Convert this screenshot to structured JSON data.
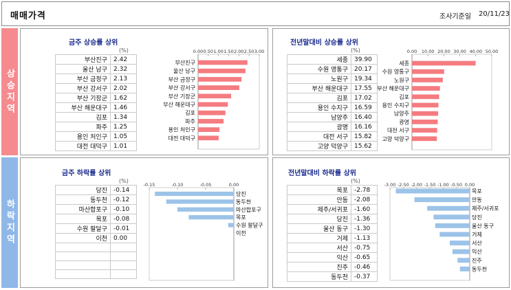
{
  "header": {
    "title": "매매가격",
    "date_label": "조사기준일",
    "date_value": "20/11/23"
  },
  "row_labels": {
    "rise": "상승지역",
    "fall": "하락지역"
  },
  "unit": "(%)",
  "chart_data": [
    {
      "type": "bar",
      "title": "금주 상승률 상위",
      "categories": [
        "부산진구",
        "울산 남구",
        "부산 금정구",
        "부산 강서구",
        "부산 기장군",
        "부산 해운대구",
        "김포",
        "파주",
        "용인 처인구",
        "대전 대덕구"
      ],
      "values": [
        2.42,
        2.32,
        2.13,
        2.02,
        1.62,
        1.46,
        1.34,
        1.25,
        1.05,
        1.01
      ],
      "value_labels": [
        "2.42",
        "2.32",
        "2.13",
        "2.02",
        "1.62",
        "1.46",
        "1.34",
        "1.25",
        "1.05",
        "1.01"
      ],
      "xlim": [
        0,
        3
      ],
      "ticks": [
        "0.00",
        "0.50",
        "1.00",
        "1.50",
        "2.00",
        "2.50",
        "3.00"
      ],
      "color": "#f47c80"
    },
    {
      "type": "bar",
      "title": "전년말대비 상승률 상위",
      "categories": [
        "세종",
        "수원 영통구",
        "노원구",
        "부산 해운대구",
        "김포",
        "용인 수지구",
        "남양주",
        "광명",
        "대전 서구",
        "고양 덕양구"
      ],
      "values": [
        39.9,
        20.17,
        19.34,
        17.55,
        17.02,
        16.59,
        16.4,
        16.16,
        15.82,
        15.62
      ],
      "value_labels": [
        "39.90",
        "20.17",
        "19.34",
        "17.55",
        "17.02",
        "16.59",
        "16.40",
        "16.16",
        "15.82",
        "15.62"
      ],
      "xlim": [
        0,
        50
      ],
      "ticks": [
        "0.00",
        "10.00",
        "20.00",
        "30.00",
        "40.00",
        "50.00"
      ],
      "color": "#f47c80"
    },
    {
      "type": "bar",
      "title": "금주 하락률 상위",
      "categories": [
        "당진",
        "동두천",
        "마산합포구",
        "목포",
        "수원 팔달구",
        "이천"
      ],
      "values": [
        -0.14,
        -0.12,
        -0.1,
        -0.08,
        -0.01,
        0.0
      ],
      "value_labels": [
        "-0.14",
        "-0.12",
        "-0.10",
        "-0.08",
        "-0.01",
        "0.00"
      ],
      "xlim": [
        -0.15,
        0
      ],
      "ticks": [
        "-0.15",
        "-0.10",
        "-0.05",
        "0.00"
      ],
      "color": "#9cc3e8"
    },
    {
      "type": "bar",
      "title": "전년말대비 하락률 상위",
      "categories": [
        "목포",
        "안동",
        "제주/서귀포",
        "당진",
        "울산 동구",
        "거제",
        "서산",
        "익산",
        "진주",
        "동두천"
      ],
      "values": [
        -2.78,
        -2.08,
        -1.6,
        -1.36,
        -1.3,
        -1.13,
        -0.75,
        -0.65,
        -0.46,
        -0.37
      ],
      "value_labels": [
        "-2.78",
        "-2.08",
        "-1.60",
        "-1.36",
        "-1.30",
        "-1.13",
        "-0.75",
        "-0.65",
        "-0.46",
        "-0.37"
      ],
      "xlim": [
        -3,
        0
      ],
      "ticks": [
        "-3.00",
        "-2.50",
        "-2.00",
        "-1.50",
        "-1.00",
        "-0.50",
        "0.00"
      ],
      "color": "#9cc3e8"
    }
  ]
}
